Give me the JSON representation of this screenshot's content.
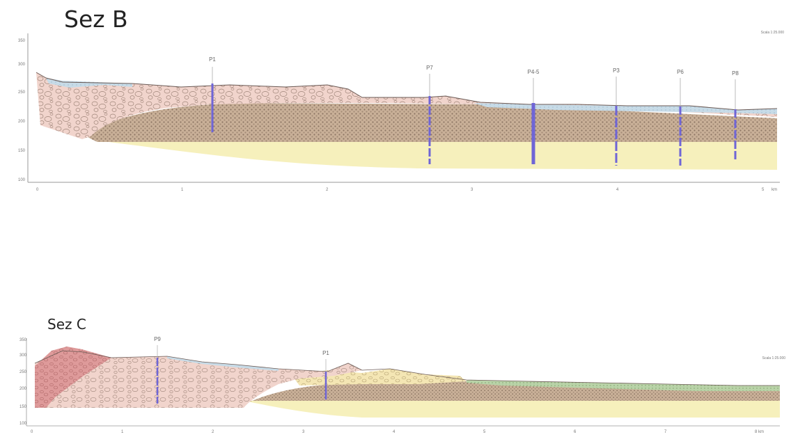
{
  "section_b": {
    "title": "Sez B",
    "scale": "Scala 1:25.000",
    "y_ticks": [
      "350",
      "300",
      "250",
      "200",
      "150",
      "100"
    ],
    "x_ticks": [
      "0",
      "1",
      "2",
      "3",
      "4",
      "5",
      "km"
    ],
    "wells": [
      {
        "label": "P1",
        "x_km": 1.2
      },
      {
        "label": "P7",
        "x_km": 2.7
      },
      {
        "label": "P4-5",
        "x_km": 3.4
      },
      {
        "label": "P3",
        "x_km": 4.0
      },
      {
        "label": "P6",
        "x_km": 4.45
      },
      {
        "label": "P8",
        "x_km": 4.8
      }
    ]
  },
  "section_c": {
    "title": "Sez C",
    "scale": "Scala 1:25.000",
    "y_ticks": [
      "350",
      "300",
      "250",
      "200",
      "150",
      "100"
    ],
    "x_ticks": [
      "0",
      "1",
      "2",
      "3",
      "4",
      "5",
      "6",
      "7",
      "8 km"
    ],
    "wells": [
      {
        "label": "P9",
        "x_km": 1.4
      },
      {
        "label": "P1",
        "x_km": 3.3
      }
    ]
  },
  "colors": {
    "gravel_pink": "#f1d4cc",
    "brown_mid": "#c7ad93",
    "sand_yellow": "#f6f0bc",
    "water_blue": "#c7dbe7",
    "red_unit": "#de9a9a",
    "green_top": "#b9d3a8",
    "well_blue": "#6f65d6"
  }
}
